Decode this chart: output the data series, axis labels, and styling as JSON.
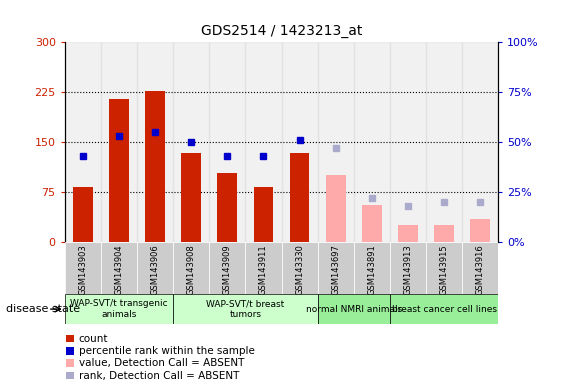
{
  "title": "GDS2514 / 1423213_at",
  "samples": [
    "GSM143903",
    "GSM143904",
    "GSM143906",
    "GSM143908",
    "GSM143909",
    "GSM143911",
    "GSM143330",
    "GSM143697",
    "GSM143891",
    "GSM143913",
    "GSM143915",
    "GSM143916"
  ],
  "count_values": [
    83,
    215,
    227,
    133,
    103,
    83,
    133,
    null,
    null,
    null,
    null,
    null
  ],
  "rank_values": [
    43,
    53,
    55,
    50,
    43,
    43,
    51,
    null,
    null,
    null,
    null,
    null
  ],
  "absent_count_values": [
    null,
    null,
    null,
    null,
    null,
    null,
    null,
    100,
    55,
    25,
    25,
    35
  ],
  "absent_rank_values": [
    null,
    null,
    null,
    null,
    null,
    null,
    null,
    47,
    22,
    18,
    20,
    20
  ],
  "ylim_left": [
    0,
    300
  ],
  "ylim_right": [
    0,
    100
  ],
  "yticks_left": [
    0,
    75,
    150,
    225,
    300
  ],
  "ytick_labels_left": [
    "0",
    "75",
    "150",
    "225",
    "300"
  ],
  "yticks_right": [
    0,
    25,
    50,
    75,
    100
  ],
  "ytick_labels_right": [
    "0%",
    "25%",
    "50%",
    "75%",
    "100%"
  ],
  "color_count": "#cc2200",
  "color_rank": "#0000cc",
  "color_absent_count": "#ffaaaa",
  "color_absent_rank": "#aaaacc",
  "groups": [
    {
      "label": "WAP-SVT/t transgenic\nanimals",
      "start": 0,
      "end": 3,
      "color": "#ccffcc"
    },
    {
      "label": "WAP-SVT/t breast\ntumors",
      "start": 3,
      "end": 7,
      "color": "#ccffcc"
    },
    {
      "label": "normal NMRI animals",
      "start": 7,
      "end": 9,
      "color": "#99ee99"
    },
    {
      "label": "breast cancer cell lines",
      "start": 9,
      "end": 12,
      "color": "#99ee99"
    }
  ],
  "disease_state_label": "disease state",
  "legend_items": [
    {
      "label": "count",
      "color": "#cc2200"
    },
    {
      "label": "percentile rank within the sample",
      "color": "#0000cc"
    },
    {
      "label": "value, Detection Call = ABSENT",
      "color": "#ffaaaa"
    },
    {
      "label": "rank, Detection Call = ABSENT",
      "color": "#aaaacc"
    }
  ]
}
